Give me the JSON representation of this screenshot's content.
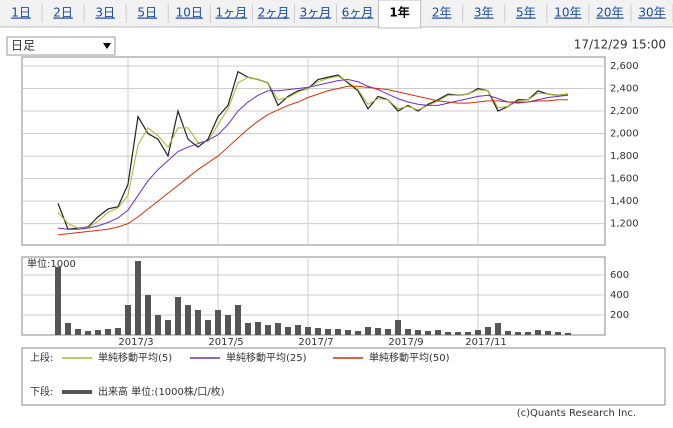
{
  "tabs": [
    {
      "label": "1日"
    },
    {
      "label": "2日"
    },
    {
      "label": "3日"
    },
    {
      "label": "5日"
    },
    {
      "label": "10日"
    },
    {
      "label": "1ヶ月"
    },
    {
      "label": "2ヶ月"
    },
    {
      "label": "3ヶ月"
    },
    {
      "label": "6ヶ月"
    },
    {
      "label": "1年",
      "selected": true
    },
    {
      "label": "2年"
    },
    {
      "label": "3年"
    },
    {
      "label": "5年"
    },
    {
      "label": "10年"
    },
    {
      "label": "20年"
    },
    {
      "label": "30年"
    }
  ],
  "interval_select": "日足",
  "timestamp": "17/12/29 15:00",
  "copyright": "(c)Quants Research Inc.",
  "chart_data": [
    {
      "type": "line",
      "legend_title": "上段:",
      "ylim": [
        1010,
        2680
      ],
      "yticks": [
        {
          "value": 1200,
          "label": "1,200"
        },
        {
          "value": 1400,
          "label": "1,400"
        },
        {
          "value": 1600,
          "label": "1,600"
        },
        {
          "value": 1800,
          "label": "1,800"
        },
        {
          "value": 2000,
          "label": "2,000"
        },
        {
          "value": 2200,
          "label": "2,200"
        },
        {
          "value": 2400,
          "label": "2,400"
        },
        {
          "value": 2600,
          "label": "2,600"
        }
      ],
      "grid": true,
      "series": [
        {
          "color": "#222222",
          "values": [
            1380,
            1150,
            1160,
            1170,
            1260,
            1330,
            1350,
            1550,
            2150,
            2000,
            1950,
            1800,
            2200,
            1950,
            1880,
            1950,
            2150,
            2250,
            2550,
            2500,
            2480,
            2450,
            2250,
            2330,
            2380,
            2400,
            2480,
            2500,
            2520,
            2450,
            2380,
            2220,
            2330,
            2300,
            2200,
            2250,
            2200,
            2260,
            2300,
            2350,
            2340,
            2350,
            2400,
            2380,
            2200,
            2240,
            2300,
            2300,
            2380,
            2350,
            2340,
            2350
          ]
        },
        {
          "name": "単純移動平均(5)",
          "color": "#a8b832",
          "values": [
            1300,
            1200,
            1160,
            1165,
            1220,
            1300,
            1340,
            1450,
            1900,
            2050,
            1980,
            1880,
            2050,
            2050,
            1920,
            1930,
            2080,
            2220,
            2450,
            2500,
            2480,
            2450,
            2300,
            2320,
            2370,
            2400,
            2460,
            2490,
            2510,
            2460,
            2390,
            2260,
            2310,
            2300,
            2220,
            2240,
            2210,
            2250,
            2290,
            2340,
            2340,
            2350,
            2390,
            2380,
            2230,
            2240,
            2290,
            2300,
            2360,
            2350,
            2340,
            2350
          ]
        },
        {
          "name": "単純移動平均(25)",
          "color": "#6a2fc8",
          "values": [
            1160,
            1150,
            1150,
            1160,
            1180,
            1210,
            1250,
            1320,
            1450,
            1580,
            1680,
            1760,
            1840,
            1880,
            1910,
            1940,
            1990,
            2080,
            2200,
            2280,
            2340,
            2380,
            2380,
            2390,
            2400,
            2410,
            2430,
            2450,
            2470,
            2480,
            2460,
            2420,
            2390,
            2350,
            2310,
            2280,
            2260,
            2250,
            2250,
            2270,
            2290,
            2310,
            2330,
            2340,
            2310,
            2280,
            2270,
            2280,
            2300,
            2320,
            2330,
            2340
          ]
        },
        {
          "name": "単純移動平均(50)",
          "color": "#cc3311",
          "values": [
            1100,
            1110,
            1120,
            1130,
            1140,
            1150,
            1170,
            1200,
            1260,
            1330,
            1400,
            1470,
            1540,
            1610,
            1680,
            1740,
            1800,
            1880,
            1960,
            2040,
            2110,
            2170,
            2210,
            2250,
            2280,
            2320,
            2350,
            2380,
            2400,
            2420,
            2420,
            2410,
            2400,
            2390,
            2370,
            2350,
            2330,
            2310,
            2290,
            2280,
            2270,
            2270,
            2280,
            2290,
            2290,
            2280,
            2280,
            2280,
            2290,
            2290,
            2300,
            2300
          ]
        }
      ]
    },
    {
      "type": "bar",
      "legend_title": "下段:",
      "unit_label": "単位:1000",
      "categories": [
        null,
        null,
        null,
        null,
        null,
        null,
        null,
        "2017/3",
        null,
        null,
        null,
        null,
        null,
        null,
        null,
        null,
        "2017/5",
        null,
        null,
        null,
        null,
        null,
        null,
        null,
        null,
        "2017/7",
        null,
        null,
        null,
        null,
        null,
        null,
        null,
        null,
        "2017/9",
        null,
        null,
        null,
        null,
        null,
        null,
        null,
        "2017/11",
        null,
        null,
        null,
        null,
        null,
        null,
        null,
        null,
        null
      ],
      "ylim": [
        0,
        780
      ],
      "yticks": [
        200,
        400,
        600
      ],
      "series": [
        {
          "name": "出来高 単位:(1000株/口/枚)",
          "color": "#555555",
          "values": [
            680,
            120,
            60,
            40,
            50,
            60,
            70,
            300,
            740,
            400,
            200,
            150,
            380,
            300,
            250,
            150,
            250,
            200,
            300,
            120,
            130,
            100,
            120,
            80,
            100,
            80,
            70,
            60,
            60,
            50,
            40,
            80,
            70,
            60,
            150,
            60,
            50,
            40,
            50,
            30,
            30,
            30,
            50,
            80,
            120,
            40,
            30,
            30,
            50,
            40,
            30,
            20
          ]
        }
      ]
    }
  ]
}
